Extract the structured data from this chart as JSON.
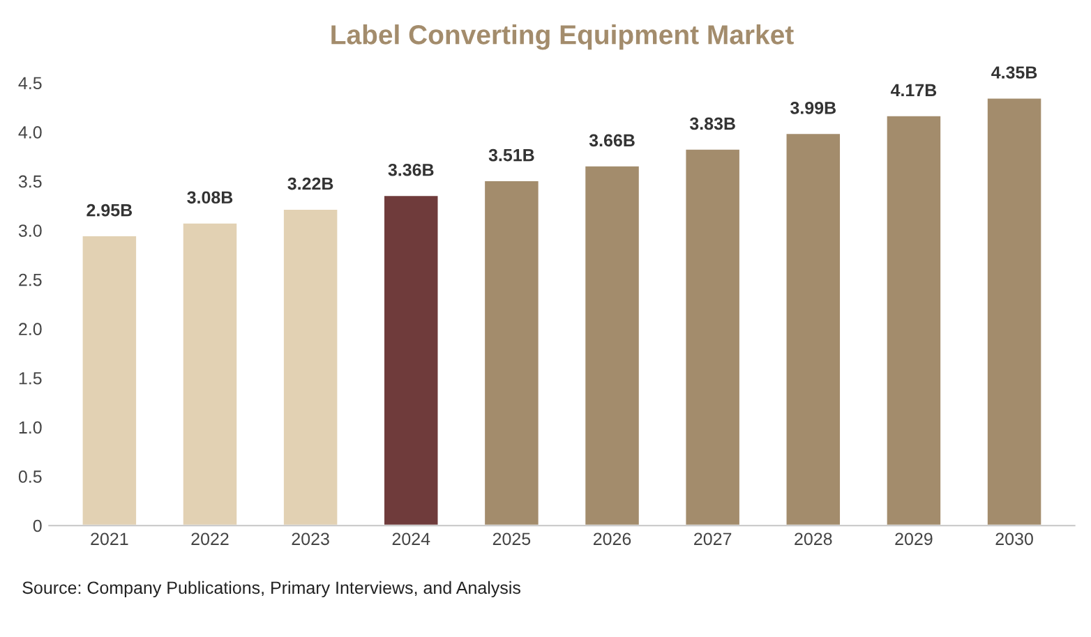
{
  "chart_data": {
    "type": "bar",
    "title": "Label Converting Equipment Market",
    "categories": [
      "2021",
      "2022",
      "2023",
      "2024",
      "2025",
      "2026",
      "2027",
      "2028",
      "2029",
      "2030"
    ],
    "values": [
      2.95,
      3.08,
      3.22,
      3.36,
      3.51,
      3.66,
      3.83,
      3.99,
      4.17,
      4.35
    ],
    "value_labels": [
      "2.95B",
      "3.08B",
      "3.22B",
      "3.36B",
      "3.51B",
      "3.66B",
      "3.83B",
      "3.99B",
      "4.17B",
      "4.35B"
    ],
    "colors": [
      "#e2d1b3",
      "#e2d1b3",
      "#e2d1b3",
      "#6f3b3b",
      "#a38c6c",
      "#a38c6c",
      "#a38c6c",
      "#a38c6c",
      "#a38c6c",
      "#a38c6c"
    ],
    "ylim": [
      0,
      4.5
    ],
    "yticks": [
      {
        "value": 0,
        "label": "0"
      },
      {
        "value": 0.5,
        "label": "0.5"
      },
      {
        "value": 1.0,
        "label": "1.0"
      },
      {
        "value": 1.5,
        "label": "1.5"
      },
      {
        "value": 2.0,
        "label": "2.0"
      },
      {
        "value": 2.5,
        "label": "2.5"
      },
      {
        "value": 3.0,
        "label": "3.0"
      },
      {
        "value": 3.5,
        "label": "3.5"
      },
      {
        "value": 4.0,
        "label": "4.0"
      },
      {
        "value": 4.5,
        "label": "4.5"
      }
    ],
    "grid": false,
    "annotations": [
      "Source: Company Publications, Primary Interviews, and Analysis"
    ]
  }
}
